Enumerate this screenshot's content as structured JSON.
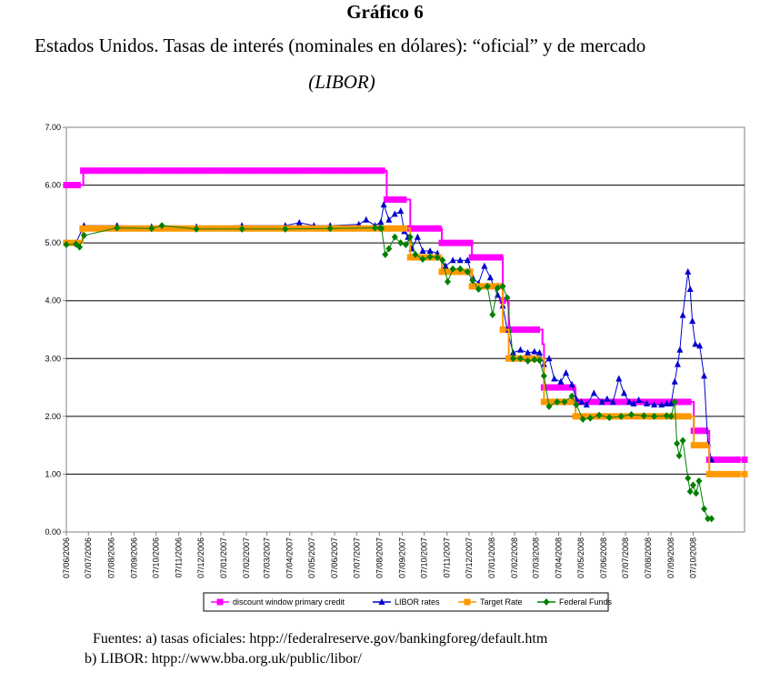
{
  "figure": {
    "title": "Gráfico 6",
    "subtitle": "Estados Unidos. Tasas de interés (nominales en dólares): “oficial” y de mercado",
    "subtitle2": "(LIBOR)"
  },
  "sources": {
    "line1": "Fuentes: a) tasas oficiales: htpp://federalreserve.gov/bankingforeg/default.htm",
    "line2": "b) LIBOR: htpp://www.bba.org.uk/public/libor/"
  },
  "chart_data": {
    "type": "line",
    "ylim": [
      0,
      7
    ],
    "yticks": [
      "0.00",
      "1.00",
      "2.00",
      "3.00",
      "4.00",
      "5.00",
      "6.00",
      "7.00"
    ],
    "xlim": [
      "2006-06-07",
      "2008-12-16"
    ],
    "xticks": [
      "07/06/2006",
      "07/07/2006",
      "07/08/2006",
      "07/09/2006",
      "07/10/2006",
      "07/11/2006",
      "07/12/2006",
      "07/01/2007",
      "07/02/2007",
      "07/03/2007",
      "07/04/2007",
      "07/05/2007",
      "07/06/2007",
      "07/07/2007",
      "07/08/2007",
      "07/09/2007",
      "07/10/2007",
      "07/11/2007",
      "07/12/2007",
      "07/01/2008",
      "07/02/2008",
      "07/03/2008",
      "07/04/2008",
      "07/05/2008",
      "07/06/2008",
      "07/07/2008",
      "07/08/2008",
      "07/09/2008",
      "07/10/2008"
    ],
    "grid": "horizontal",
    "legend_position": "bottom",
    "series": [
      {
        "name": "discount window primary credit",
        "color": "#ff00ff",
        "marker": "square",
        "x": [
          "2006-06-07",
          "2006-06-30",
          "2007-08-17",
          "2007-09-18",
          "2007-10-31",
          "2007-12-11",
          "2008-01-22",
          "2008-01-30",
          "2008-03-16",
          "2008-03-18",
          "2008-04-30",
          "2008-10-08",
          "2008-10-29",
          "2008-12-16"
        ],
        "y": [
          6.0,
          6.25,
          5.75,
          5.25,
          5.0,
          4.75,
          4.0,
          3.5,
          3.25,
          2.5,
          2.25,
          1.75,
          1.25,
          1.25
        ]
      },
      {
        "name": "LIBOR rates",
        "color": "#0000cc",
        "marker": "triangle",
        "x": [
          "2006-06-07",
          "2006-06-20",
          "2006-07-01",
          "2006-08-15",
          "2006-10-01",
          "2006-12-01",
          "2007-02-01",
          "2007-04-01",
          "2007-04-20",
          "2007-05-10",
          "2007-06-01",
          "2007-07-10",
          "2007-07-20",
          "2007-08-01",
          "2007-08-09",
          "2007-08-13",
          "2007-08-20",
          "2007-08-28",
          "2007-09-05",
          "2007-09-10",
          "2007-09-15",
          "2007-09-20",
          "2007-09-28",
          "2007-10-05",
          "2007-10-15",
          "2007-10-25",
          "2007-11-05",
          "2007-11-15",
          "2007-11-25",
          "2007-12-05",
          "2007-12-12",
          "2007-12-20",
          "2007-12-28",
          "2008-01-05",
          "2008-01-15",
          "2008-01-22",
          "2008-01-28",
          "2008-02-05",
          "2008-02-15",
          "2008-02-25",
          "2008-03-05",
          "2008-03-12",
          "2008-03-18",
          "2008-03-25",
          "2008-04-01",
          "2008-04-10",
          "2008-04-17",
          "2008-04-25",
          "2008-05-01",
          "2008-05-08",
          "2008-05-15",
          "2008-05-25",
          "2008-06-05",
          "2008-06-12",
          "2008-06-20",
          "2008-06-28",
          "2008-07-05",
          "2008-07-12",
          "2008-07-18",
          "2008-07-25",
          "2008-08-05",
          "2008-08-15",
          "2008-08-25",
          "2008-09-01",
          "2008-09-07",
          "2008-09-12",
          "2008-09-16",
          "2008-09-19",
          "2008-09-23",
          "2008-09-30",
          "2008-10-03",
          "2008-10-06",
          "2008-10-10",
          "2008-10-16",
          "2008-10-22",
          "2008-10-27",
          "2008-11-01"
        ],
        "y": [
          5.0,
          5.0,
          5.3,
          5.3,
          5.28,
          5.28,
          5.3,
          5.3,
          5.35,
          5.3,
          5.3,
          5.32,
          5.4,
          5.3,
          5.36,
          5.66,
          5.4,
          5.5,
          5.55,
          5.2,
          5.1,
          4.9,
          5.1,
          4.86,
          4.86,
          4.82,
          4.6,
          4.7,
          4.7,
          4.7,
          4.4,
          4.3,
          4.6,
          4.4,
          4.1,
          3.91,
          3.5,
          3.1,
          3.15,
          3.1,
          3.12,
          3.1,
          2.9,
          3.0,
          2.65,
          2.6,
          2.75,
          2.55,
          2.3,
          2.25,
          2.2,
          2.4,
          2.25,
          2.3,
          2.25,
          2.65,
          2.4,
          2.25,
          2.22,
          2.28,
          2.22,
          2.2,
          2.2,
          2.22,
          2.22,
          2.6,
          2.9,
          3.15,
          3.75,
          4.5,
          4.2,
          3.65,
          3.25,
          3.22,
          2.7,
          1.53,
          1.25
        ]
      },
      {
        "name": "Target Rate",
        "color": "#ff9900",
        "marker": "square",
        "x": [
          "2006-06-07",
          "2006-06-29",
          "2007-09-18",
          "2007-10-31",
          "2007-12-11",
          "2008-01-22",
          "2008-01-30",
          "2008-03-18",
          "2008-04-30",
          "2008-10-08",
          "2008-10-29",
          "2008-12-16"
        ],
        "y": [
          5.0,
          5.25,
          4.75,
          4.5,
          4.25,
          3.5,
          3.0,
          2.25,
          2.0,
          1.5,
          1.0,
          1.0
        ]
      },
      {
        "name": "Federal Funds",
        "color": "#008000",
        "marker": "diamond",
        "x": [
          "2006-06-07",
          "2006-06-20",
          "2006-06-25",
          "2006-07-01",
          "2006-08-15",
          "2006-10-01",
          "2006-10-15",
          "2006-12-01",
          "2007-02-01",
          "2007-04-01",
          "2007-06-01",
          "2007-08-01",
          "2007-08-08",
          "2007-08-10",
          "2007-08-15",
          "2007-08-20",
          "2007-08-28",
          "2007-09-05",
          "2007-09-12",
          "2007-09-18",
          "2007-09-25",
          "2007-10-05",
          "2007-10-15",
          "2007-10-25",
          "2007-11-01",
          "2007-11-08",
          "2007-11-15",
          "2007-11-25",
          "2007-12-05",
          "2007-12-12",
          "2007-12-20",
          "2008-01-01",
          "2008-01-08",
          "2008-01-15",
          "2008-01-22",
          "2008-01-28",
          "2008-02-05",
          "2008-02-15",
          "2008-02-25",
          "2008-03-05",
          "2008-03-12",
          "2008-03-18",
          "2008-03-25",
          "2008-04-05",
          "2008-04-15",
          "2008-04-25",
          "2008-05-01",
          "2008-05-10",
          "2008-05-20",
          "2008-06-01",
          "2008-06-15",
          "2008-07-01",
          "2008-07-15",
          "2008-08-01",
          "2008-08-15",
          "2008-09-01",
          "2008-09-07",
          "2008-09-12",
          "2008-09-15",
          "2008-09-18",
          "2008-09-23",
          "2008-09-30",
          "2008-10-03",
          "2008-10-07",
          "2008-10-11",
          "2008-10-15",
          "2008-10-22",
          "2008-10-27",
          "2008-11-01"
        ],
        "y": [
          4.97,
          4.98,
          4.93,
          5.13,
          5.26,
          5.25,
          5.3,
          5.24,
          5.24,
          5.24,
          5.25,
          5.26,
          5.26,
          5.25,
          4.8,
          4.9,
          5.1,
          5.0,
          4.97,
          5.1,
          4.8,
          4.72,
          4.76,
          4.75,
          4.7,
          4.33,
          4.55,
          4.55,
          4.5,
          4.35,
          4.2,
          4.25,
          3.76,
          4.22,
          4.25,
          4.05,
          3.0,
          3.0,
          2.96,
          2.98,
          2.97,
          2.7,
          2.17,
          2.25,
          2.25,
          2.35,
          2.2,
          1.95,
          1.97,
          2.02,
          1.98,
          2.0,
          2.03,
          2.01,
          2.0,
          2.01,
          2.0,
          2.25,
          1.53,
          1.32,
          1.58,
          0.93,
          0.7,
          0.81,
          0.67,
          0.88,
          0.4,
          0.23,
          0.23
        ]
      }
    ]
  }
}
